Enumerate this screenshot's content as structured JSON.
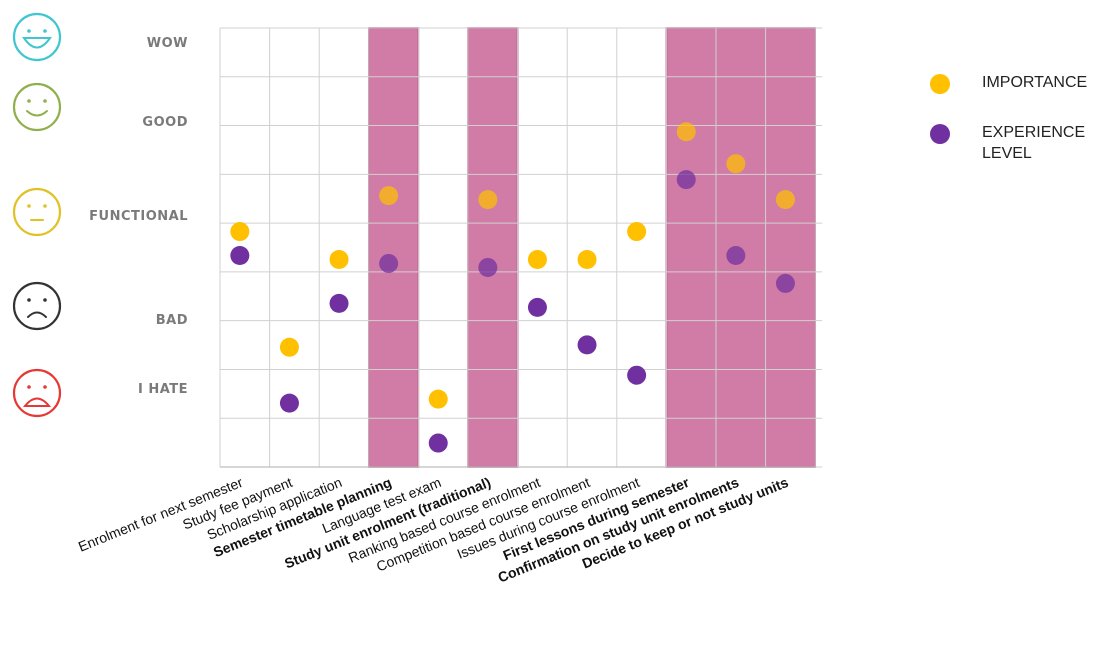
{
  "chart_data": {
    "type": "scatter",
    "categories": [
      "Enrolment for next semester",
      "Study fee payment",
      "Scholarship application",
      "Semester timetable planning",
      "Language test exam",
      "Study unit enrolment (traditional)",
      "Ranking based course enrolment",
      "Competition based course enrolment",
      "Issues during course enrolment",
      "First lessons during semester",
      "Confirmation on study unit enrolments",
      "Decide to keep or not study units"
    ],
    "bold_categories": [
      3,
      5,
      9,
      10,
      11
    ],
    "highlighted_categories": [
      3,
      5,
      9,
      10,
      11
    ],
    "levels": [
      {
        "label": "WOW",
        "face": "wow-face-icon",
        "color": "#3ec6d1",
        "value": 5
      },
      {
        "label": "GOOD",
        "face": "good-face-icon",
        "color": "#8fb04c",
        "value": 4
      },
      {
        "label": "FUNCTIONAL",
        "face": "functional-face-icon",
        "color": "#e0c226",
        "value": 3
      },
      {
        "label": "BAD",
        "face": "bad-face-icon",
        "color": "#333333",
        "value": 2
      },
      {
        "label": "I HATE",
        "face": "hate-face-icon",
        "color": "#e53935",
        "value": 1
      }
    ],
    "ylim": [
      0,
      5.5
    ],
    "grid": true,
    "series": [
      {
        "name": "IMPORTANCE",
        "color": "#ffc000",
        "values": [
          2.95,
          1.5,
          2.6,
          3.4,
          0.85,
          3.35,
          2.6,
          2.6,
          2.95,
          4.2,
          3.8,
          3.35
        ]
      },
      {
        "name": "EXPERIENCE LEVEL",
        "color": "#7030a0",
        "values": [
          2.65,
          0.8,
          2.05,
          2.55,
          0.3,
          2.5,
          2.0,
          1.53,
          1.15,
          3.6,
          2.65,
          2.3
        ]
      }
    ],
    "highlight_color": "#c0508a",
    "legend_position": "top-right"
  },
  "legend": {
    "items": [
      {
        "label": "IMPORTANCE",
        "color": "#ffc000"
      },
      {
        "label": "EXPERIENCE LEVEL",
        "color": "#7030a0"
      }
    ]
  }
}
